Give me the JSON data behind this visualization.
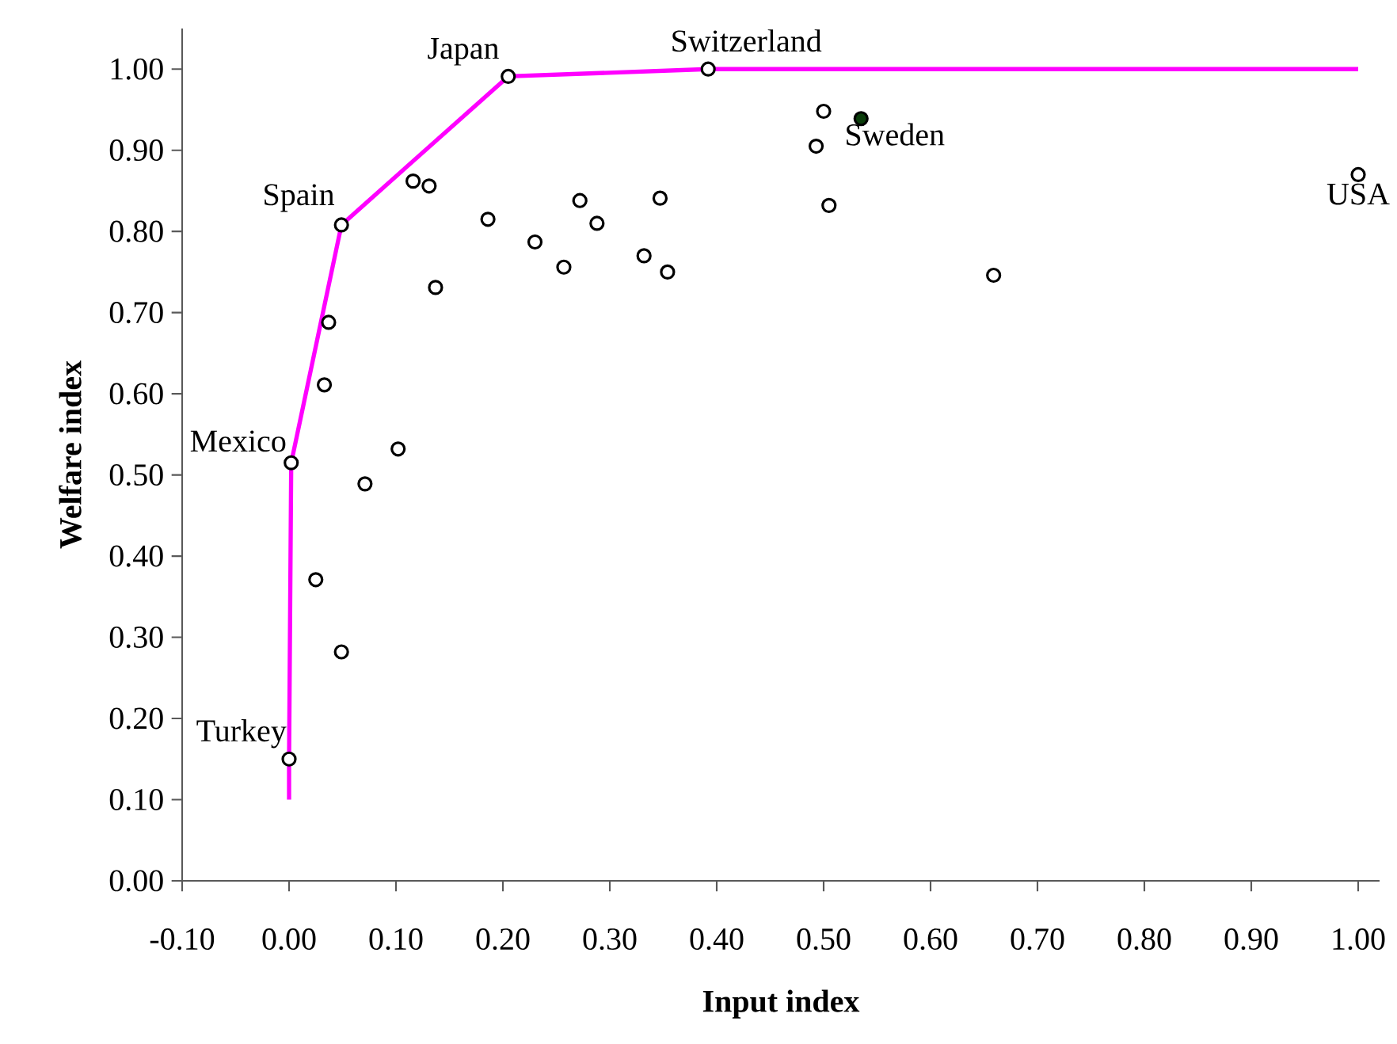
{
  "chart_data": {
    "type": "scatter",
    "xlabel": "Input index",
    "ylabel": "Welfare index",
    "xlim": [
      -0.1,
      1.02
    ],
    "ylim": [
      0,
      1.05
    ],
    "xticks": [
      {
        "value": -0.1,
        "label": "-0.10"
      },
      {
        "value": 0,
        "label": "0.00"
      },
      {
        "value": 0.1,
        "label": "0.10"
      },
      {
        "value": 0.2,
        "label": "0.20"
      },
      {
        "value": 0.3,
        "label": "0.30"
      },
      {
        "value": 0.4,
        "label": "0.40"
      },
      {
        "value": 0.5,
        "label": "0.50"
      },
      {
        "value": 0.6,
        "label": "0.60"
      },
      {
        "value": 0.7,
        "label": "0.70"
      },
      {
        "value": 0.8,
        "label": "0.80"
      },
      {
        "value": 0.9,
        "label": "0.90"
      },
      {
        "value": 1,
        "label": "1.00"
      }
    ],
    "yticks": [
      {
        "value": 0,
        "label": "0.00"
      },
      {
        "value": 0.1,
        "label": "0.10"
      },
      {
        "value": 0.2,
        "label": "0.20"
      },
      {
        "value": 0.3,
        "label": "0.30"
      },
      {
        "value": 0.4,
        "label": "0.40"
      },
      {
        "value": 0.5,
        "label": "0.50"
      },
      {
        "value": 0.6,
        "label": "0.60"
      },
      {
        "value": 0.7,
        "label": "0.70"
      },
      {
        "value": 0.8,
        "label": "0.80"
      },
      {
        "value": 0.9,
        "label": "0.90"
      },
      {
        "value": 1,
        "label": "1.00"
      }
    ],
    "grid": false,
    "marker": "circle",
    "series": [
      {
        "type": "line",
        "color": "#ff00ff",
        "marker": "none",
        "x": [
          0,
          0,
          0.002,
          0.049,
          0.205,
          0.392,
          1.0
        ],
        "values": [
          0.1,
          0.15,
          0.515,
          0.808,
          0.991,
          1.0,
          1.0
        ]
      },
      {
        "color": "#000000",
        "x": [
          0,
          0.002,
          0.071,
          0.102,
          0.025,
          0.049,
          0.049,
          0.205,
          0.392,
          0.037,
          0.033,
          0.116,
          0.131,
          0.186,
          0.137,
          0.23,
          0.272,
          0.288,
          0.257,
          0.347,
          0.332,
          0.354,
          0.5,
          0.493,
          0.505,
          0.659,
          1.0
        ],
        "values": [
          0.15,
          0.515,
          0.489,
          0.532,
          0.371,
          0.282,
          0.808,
          0.991,
          1.0,
          0.688,
          0.611,
          0.862,
          0.856,
          0.815,
          0.731,
          0.787,
          0.838,
          0.81,
          0.756,
          0.841,
          0.77,
          0.75,
          0.948,
          0.905,
          0.832,
          0.746,
          0.87
        ]
      },
      {
        "color": "#0b3d0b",
        "x": [
          0.535
        ],
        "values": [
          0.939
        ]
      }
    ],
    "annotations": [
      {
        "text": "Turkey",
        "x": 0,
        "y": 0.15
      },
      {
        "text": "Mexico",
        "x": 0.002,
        "y": 0.515
      },
      {
        "text": "Spain",
        "x": 0.049,
        "y": 0.808
      },
      {
        "text": "Japan",
        "x": 0.205,
        "y": 0.991
      },
      {
        "text": "Switzerland",
        "x": 0.392,
        "y": 1.0
      },
      {
        "text": "Sweden",
        "x": 0.535,
        "y": 0.939
      },
      {
        "text": "USA",
        "x": 1.0,
        "y": 0.87
      }
    ]
  }
}
